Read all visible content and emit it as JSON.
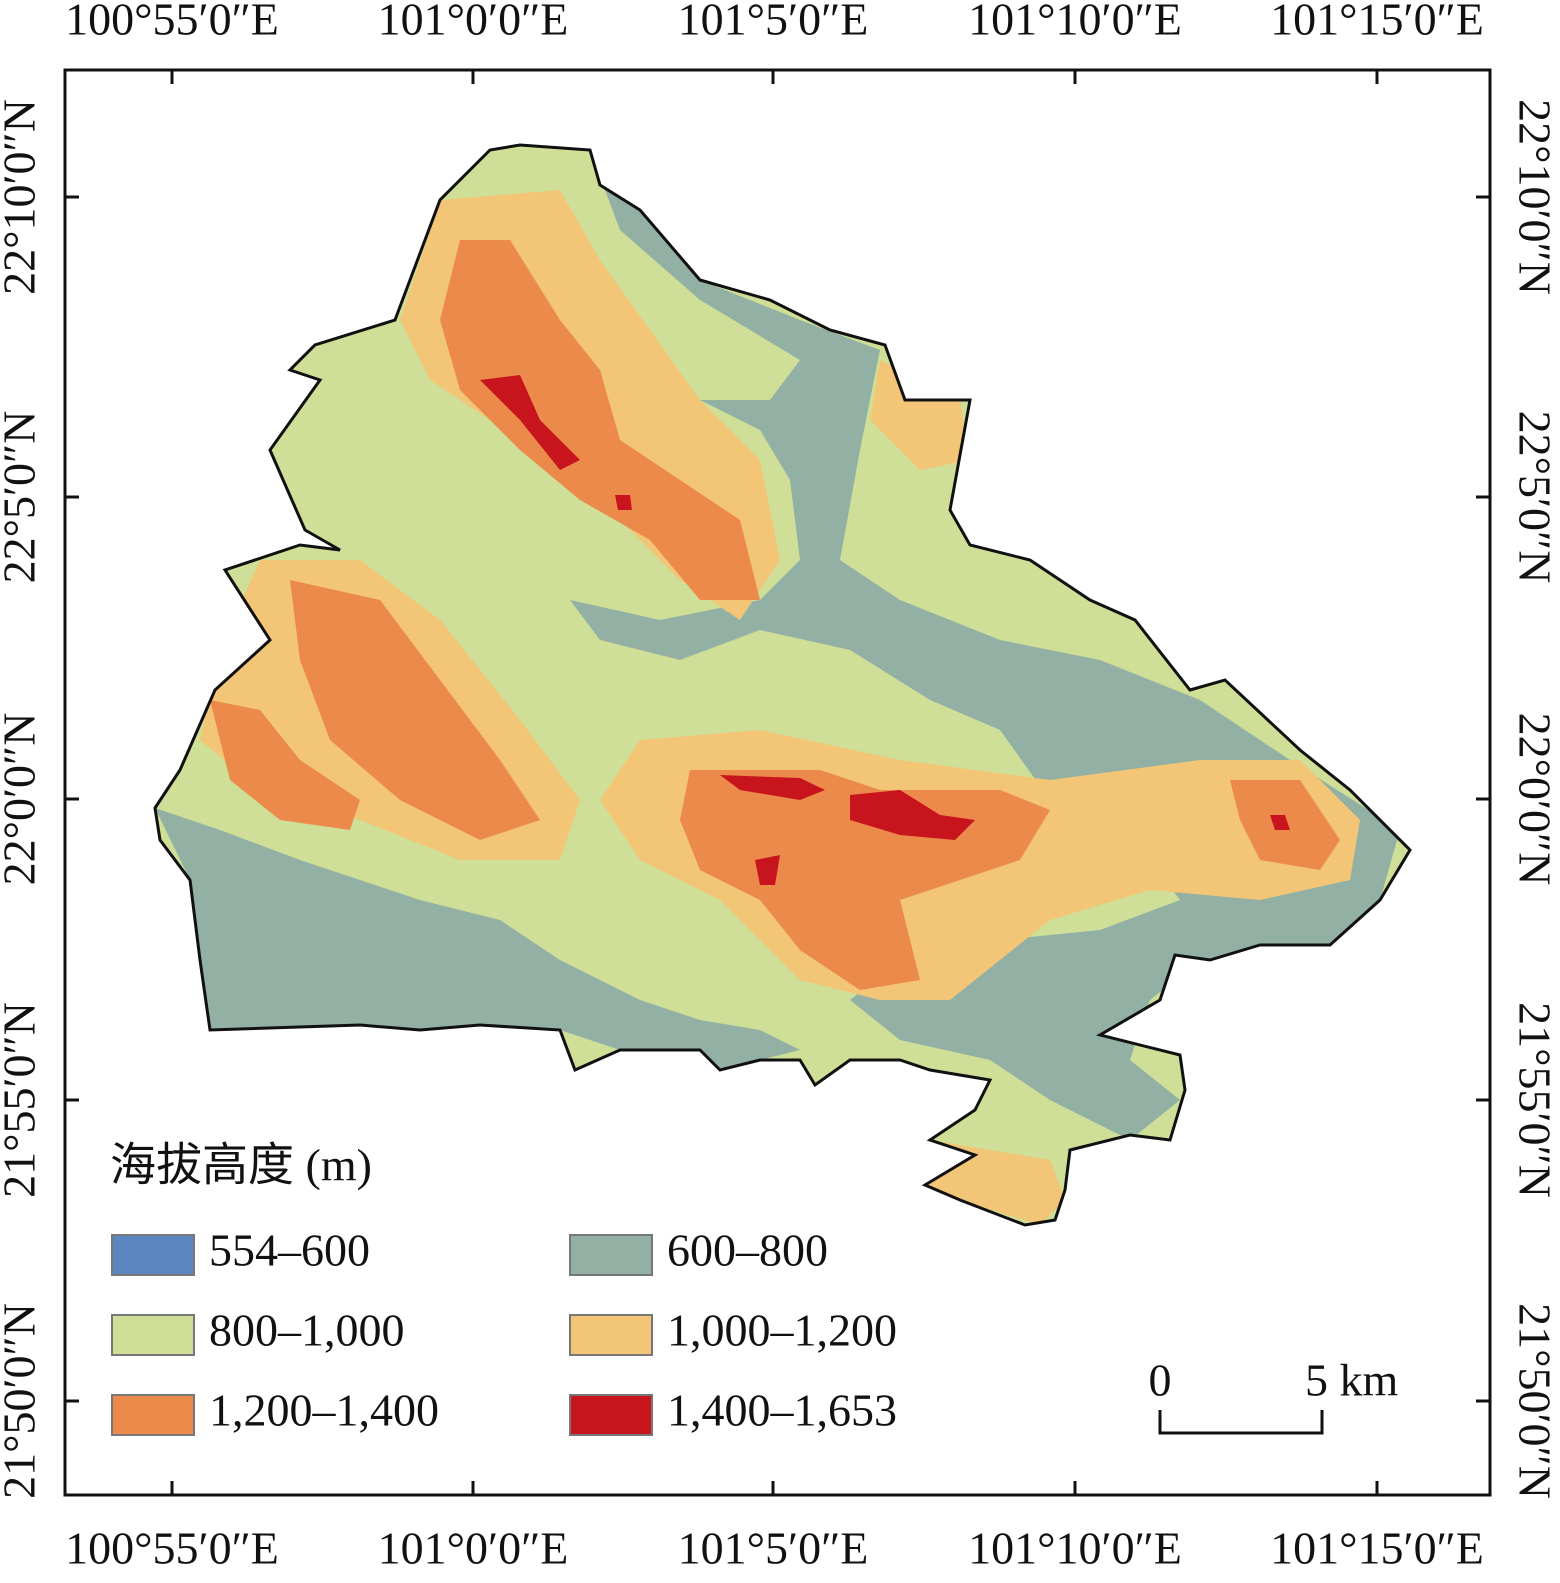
{
  "map": {
    "lon_labels": [
      "100°55′0″E",
      "101°0′0″E",
      "101°5′0″E",
      "101°10′0″E",
      "101°15′0″E"
    ],
    "lat_labels": [
      "22°10′0″N",
      "22°5′0″N",
      "22°0′0″N",
      "21°55′0″N",
      "21°50′0″N"
    ]
  },
  "legend": {
    "title": "海拔高度 (m)",
    "items": [
      {
        "label": "554–600",
        "color": "#5b86c0"
      },
      {
        "label": "600–800",
        "color": "#93b0a4"
      },
      {
        "label": "800–1,000",
        "color": "#cfdf98"
      },
      {
        "label": "1,000–1,200",
        "color": "#f2c676"
      },
      {
        "label": "1,200–1,400",
        "color": "#ec8a4c"
      },
      {
        "label": "1,400–1,653",
        "color": "#c8141c"
      }
    ]
  },
  "scale_bar": {
    "start": "0",
    "end": "5 km"
  }
}
